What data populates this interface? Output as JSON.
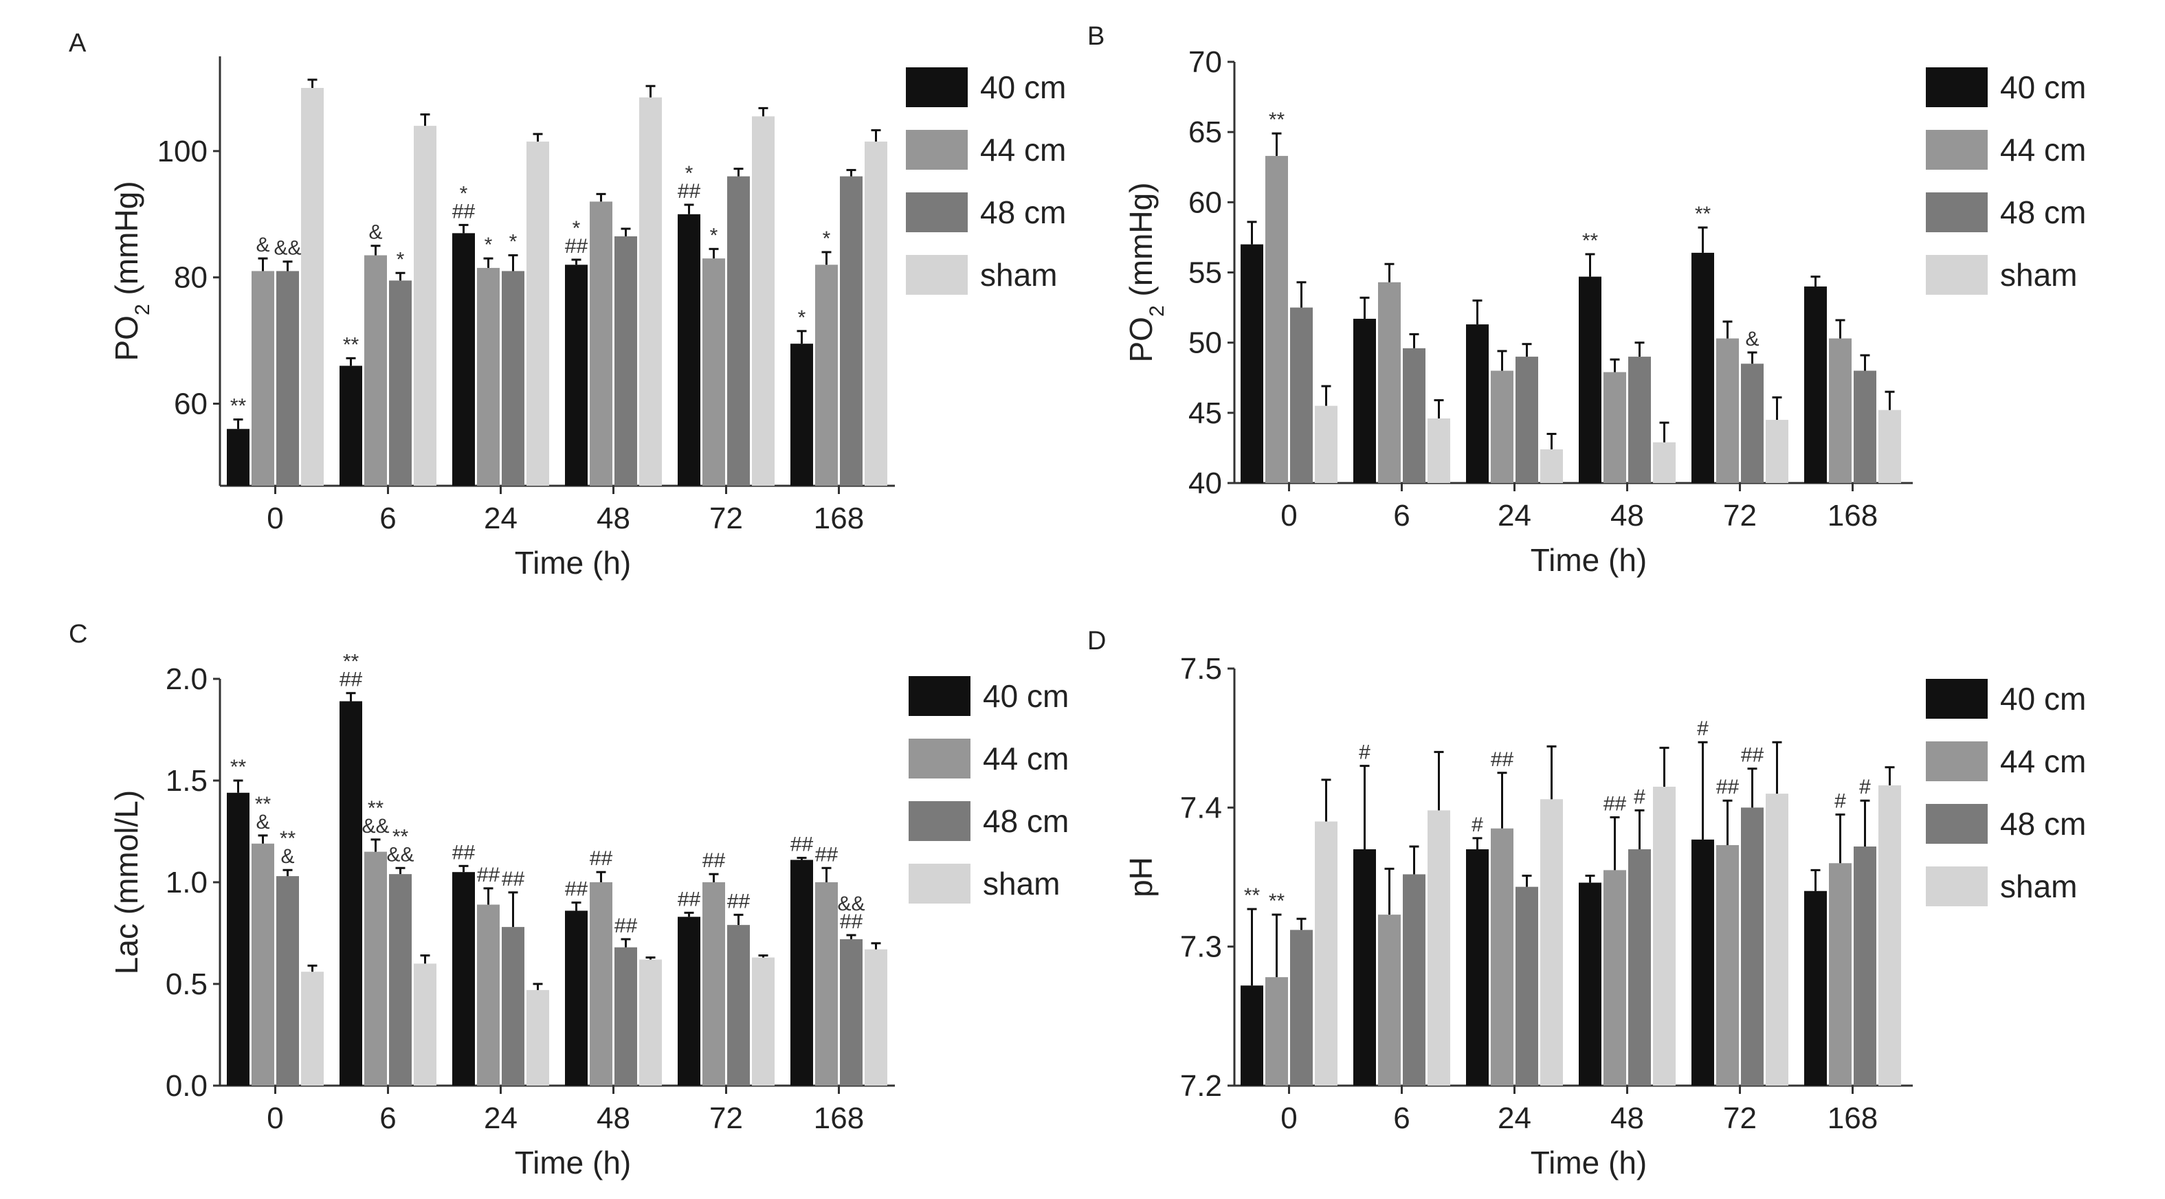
{
  "figure": {
    "colors": {
      "40 cm": "#111111",
      "44 cm": "#969696",
      "48 cm": "#7a7a7a",
      "sham": "#d4d4d4"
    },
    "chart_data": [
      {
        "panel": "A",
        "type": "bar",
        "xlabel": "Time (h)",
        "ylabel_main": "PO",
        "ylabel_sub": "2",
        "ylabel_rest": " (mmHg)",
        "ylim": [
          47,
          115
        ],
        "yticks": [
          60,
          80,
          100
        ],
        "legend": [
          "40 cm",
          "44 cm",
          "48 cm",
          "sham"
        ],
        "legend_position": "top-right",
        "categories": [
          "0",
          "6",
          "24",
          "48",
          "72",
          "168"
        ],
        "series": [
          {
            "name": "40 cm",
            "values": [
              56,
              66,
              87,
              82,
              90,
              69.5
            ],
            "errors": [
              1.5,
              1.2,
              1.3,
              0.8,
              1.5,
              2.0
            ]
          },
          {
            "name": "44 cm",
            "values": [
              81,
              83.5,
              81.5,
              92,
              83,
              82
            ],
            "errors": [
              2.0,
              1.5,
              1.5,
              1.2,
              1.5,
              2.0
            ]
          },
          {
            "name": "48 cm",
            "values": [
              81,
              79.5,
              81,
              86.5,
              96,
              96
            ],
            "errors": [
              1.5,
              1.2,
              2.5,
              1.2,
              1.2,
              1.0
            ]
          },
          {
            "name": "sham",
            "values": [
              110,
              104,
              101.5,
              108.5,
              105.5,
              101.5
            ],
            "errors": [
              1.3,
              1.8,
              1.2,
              1.8,
              1.3,
              1.8
            ]
          }
        ],
        "annotations": [
          {
            "cat": 0,
            "series": 0,
            "lines": [
              "**"
            ]
          },
          {
            "cat": 0,
            "series": 1,
            "lines": [
              "&"
            ]
          },
          {
            "cat": 0,
            "series": 2,
            "lines": [
              "&&"
            ]
          },
          {
            "cat": 1,
            "series": 0,
            "lines": [
              "**"
            ]
          },
          {
            "cat": 1,
            "series": 1,
            "lines": [
              "&"
            ]
          },
          {
            "cat": 1,
            "series": 2,
            "lines": [
              "*"
            ]
          },
          {
            "cat": 2,
            "series": 0,
            "lines": [
              "*",
              "##"
            ]
          },
          {
            "cat": 2,
            "series": 1,
            "lines": [
              "*"
            ]
          },
          {
            "cat": 2,
            "series": 2,
            "lines": [
              "*"
            ]
          },
          {
            "cat": 3,
            "series": 0,
            "lines": [
              "*",
              "##"
            ]
          },
          {
            "cat": 4,
            "series": 0,
            "lines": [
              "*",
              "##"
            ]
          },
          {
            "cat": 4,
            "series": 1,
            "lines": [
              "*"
            ]
          },
          {
            "cat": 5,
            "series": 0,
            "lines": [
              "*"
            ]
          },
          {
            "cat": 5,
            "series": 1,
            "lines": [
              "*"
            ]
          }
        ]
      },
      {
        "panel": "B",
        "type": "bar",
        "xlabel": "Time (h)",
        "ylabel_main": "PO",
        "ylabel_sub": "2",
        "ylabel_rest": " (mmHg)",
        "ylim": [
          40,
          70
        ],
        "yticks": [
          40,
          45,
          50,
          55,
          60,
          65,
          70
        ],
        "legend": [
          "40 cm",
          "44 cm",
          "48 cm",
          "sham"
        ],
        "legend_position": "top-right",
        "categories": [
          "0",
          "6",
          "24",
          "48",
          "72",
          "168"
        ],
        "series": [
          {
            "name": "40 cm",
            "values": [
              57,
              51.7,
              51.3,
              54.7,
              56.4,
              54
            ],
            "errors": [
              1.6,
              1.5,
              1.7,
              1.6,
              1.8,
              0.7
            ]
          },
          {
            "name": "44 cm",
            "values": [
              63.3,
              54.3,
              48,
              47.9,
              50.3,
              50.3
            ],
            "errors": [
              1.6,
              1.3,
              1.4,
              0.9,
              1.2,
              1.3
            ]
          },
          {
            "name": "48 cm",
            "values": [
              52.5,
              49.6,
              49,
              49,
              48.5,
              48
            ],
            "errors": [
              1.8,
              1.0,
              0.9,
              1.0,
              0.8,
              1.1
            ]
          },
          {
            "name": "sham",
            "values": [
              45.5,
              44.6,
              42.4,
              42.9,
              44.5,
              45.2
            ],
            "errors": [
              1.4,
              1.3,
              1.1,
              1.4,
              1.6,
              1.3
            ]
          }
        ],
        "annotations": [
          {
            "cat": 0,
            "series": 1,
            "lines": [
              "**"
            ]
          },
          {
            "cat": 3,
            "series": 0,
            "lines": [
              "**"
            ]
          },
          {
            "cat": 4,
            "series": 0,
            "lines": [
              "**"
            ]
          },
          {
            "cat": 4,
            "series": 2,
            "lines": [
              "&"
            ]
          }
        ]
      },
      {
        "panel": "C",
        "type": "bar",
        "xlabel": "Time (h)",
        "ylabel_main": "Lac (mmol/L)",
        "ylabel_sub": "",
        "ylabel_rest": "",
        "ylim": [
          0,
          2.0
        ],
        "yticks": [
          0.0,
          0.5,
          1.0,
          1.5,
          2.0
        ],
        "ytick_labels": [
          "0.0",
          "0.5",
          "1.0",
          "1.5",
          "2.0"
        ],
        "legend": [
          "40 cm",
          "44 cm",
          "48 cm",
          "sham"
        ],
        "legend_position": "top-right",
        "categories": [
          "0",
          "6",
          "24",
          "48",
          "72",
          "168"
        ],
        "series": [
          {
            "name": "40 cm",
            "values": [
              1.44,
              1.89,
              1.05,
              0.86,
              0.83,
              1.11
            ],
            "errors": [
              0.06,
              0.04,
              0.03,
              0.04,
              0.02,
              0.01
            ]
          },
          {
            "name": "44 cm",
            "values": [
              1.19,
              1.15,
              0.89,
              1.0,
              1.0,
              1.0
            ],
            "errors": [
              0.04,
              0.06,
              0.08,
              0.05,
              0.04,
              0.07
            ]
          },
          {
            "name": "48 cm",
            "values": [
              1.03,
              1.04,
              0.78,
              0.68,
              0.79,
              0.72
            ],
            "errors": [
              0.03,
              0.03,
              0.17,
              0.04,
              0.05,
              0.02
            ]
          },
          {
            "name": "sham",
            "values": [
              0.56,
              0.6,
              0.47,
              0.62,
              0.63,
              0.67
            ],
            "errors": [
              0.03,
              0.04,
              0.03,
              0.01,
              0.01,
              0.03
            ]
          }
        ],
        "annotations": [
          {
            "cat": 0,
            "series": 0,
            "lines": [
              "**"
            ]
          },
          {
            "cat": 0,
            "series": 1,
            "lines": [
              "**",
              "&"
            ]
          },
          {
            "cat": 0,
            "series": 2,
            "lines": [
              "**",
              "&"
            ]
          },
          {
            "cat": 1,
            "series": 0,
            "lines": [
              "**",
              "##"
            ]
          },
          {
            "cat": 1,
            "series": 1,
            "lines": [
              "**",
              "&&"
            ]
          },
          {
            "cat": 1,
            "series": 2,
            "lines": [
              "**",
              "&&"
            ]
          },
          {
            "cat": 2,
            "series": 0,
            "lines": [
              "##"
            ]
          },
          {
            "cat": 2,
            "series": 1,
            "lines": [
              "##"
            ]
          },
          {
            "cat": 2,
            "series": 2,
            "lines": [
              "##"
            ]
          },
          {
            "cat": 3,
            "series": 0,
            "lines": [
              "##"
            ]
          },
          {
            "cat": 3,
            "series": 1,
            "lines": [
              "##"
            ]
          },
          {
            "cat": 3,
            "series": 2,
            "lines": [
              "##"
            ]
          },
          {
            "cat": 4,
            "series": 0,
            "lines": [
              "##"
            ]
          },
          {
            "cat": 4,
            "series": 1,
            "lines": [
              "##"
            ]
          },
          {
            "cat": 4,
            "series": 2,
            "lines": [
              "##"
            ]
          },
          {
            "cat": 5,
            "series": 0,
            "lines": [
              "##"
            ]
          },
          {
            "cat": 5,
            "series": 1,
            "lines": [
              "##"
            ]
          },
          {
            "cat": 5,
            "series": 2,
            "lines": [
              "&&",
              "##"
            ]
          }
        ]
      },
      {
        "panel": "D",
        "type": "bar",
        "xlabel": "Time (h)",
        "ylabel_main": "pH",
        "ylabel_sub": "",
        "ylabel_rest": "",
        "ylim": [
          7.2,
          7.5
        ],
        "yticks": [
          7.2,
          7.3,
          7.4,
          7.5
        ],
        "ytick_labels": [
          "7.2",
          "7.3",
          "7.4",
          "7.5"
        ],
        "legend": [
          "40 cm",
          "44 cm",
          "48 cm",
          "sham"
        ],
        "legend_position": "top-right",
        "categories": [
          "0",
          "6",
          "24",
          "48",
          "72",
          "168"
        ],
        "series": [
          {
            "name": "40 cm",
            "values": [
              7.272,
              7.37,
              7.37,
              7.346,
              7.377,
              7.34
            ],
            "errors": [
              0.055,
              0.06,
              0.008,
              0.005,
              0.07,
              0.015
            ]
          },
          {
            "name": "44 cm",
            "values": [
              7.278,
              7.323,
              7.385,
              7.355,
              7.373,
              7.36
            ],
            "errors": [
              0.045,
              0.033,
              0.04,
              0.038,
              0.032,
              0.035
            ]
          },
          {
            "name": "48 cm",
            "values": [
              7.312,
              7.352,
              7.343,
              7.37,
              7.4,
              7.372
            ],
            "errors": [
              0.008,
              0.02,
              0.008,
              0.028,
              0.028,
              0.033
            ]
          },
          {
            "name": "sham",
            "values": [
              7.39,
              7.398,
              7.406,
              7.415,
              7.41,
              7.416
            ],
            "errors": [
              0.03,
              0.042,
              0.038,
              0.028,
              0.037,
              0.013
            ]
          }
        ],
        "annotations": [
          {
            "cat": 0,
            "series": 0,
            "lines": [
              "**"
            ]
          },
          {
            "cat": 0,
            "series": 1,
            "lines": [
              "**"
            ]
          },
          {
            "cat": 1,
            "series": 0,
            "lines": [
              "#"
            ]
          },
          {
            "cat": 2,
            "series": 0,
            "lines": [
              "#"
            ]
          },
          {
            "cat": 2,
            "series": 1,
            "lines": [
              "##"
            ]
          },
          {
            "cat": 3,
            "series": 1,
            "lines": [
              "##"
            ]
          },
          {
            "cat": 3,
            "series": 2,
            "lines": [
              "#"
            ]
          },
          {
            "cat": 4,
            "series": 0,
            "lines": [
              "#"
            ]
          },
          {
            "cat": 4,
            "series": 1,
            "lines": [
              "##"
            ]
          },
          {
            "cat": 4,
            "series": 2,
            "lines": [
              "##"
            ]
          },
          {
            "cat": 5,
            "series": 1,
            "lines": [
              "#"
            ]
          },
          {
            "cat": 5,
            "series": 2,
            "lines": [
              "#"
            ]
          }
        ]
      }
    ]
  }
}
